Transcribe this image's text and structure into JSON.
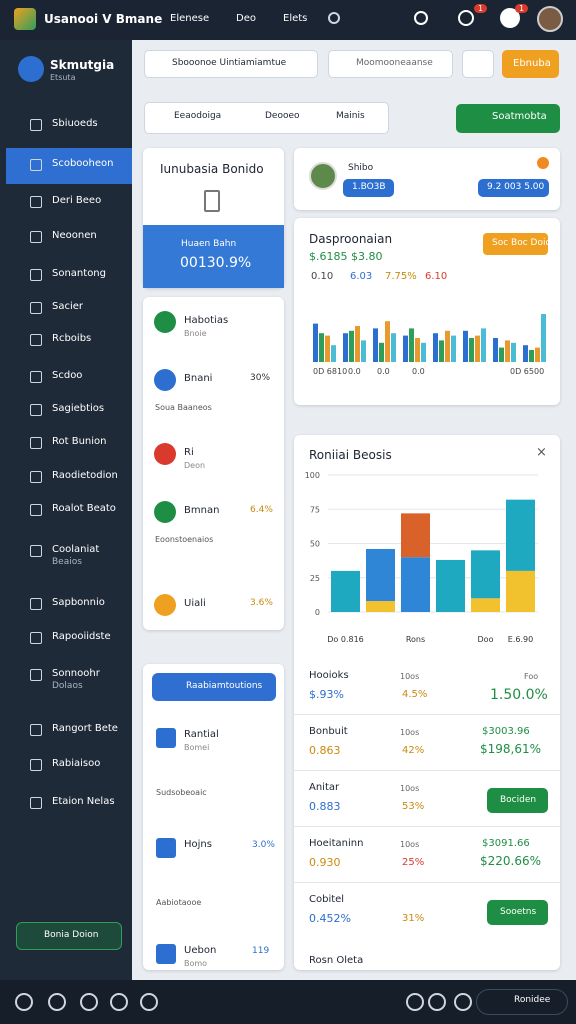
{
  "topbar": {
    "logo": "Usanooi V Bmane",
    "tabs": [
      "Elenese",
      "Deo",
      "Elets"
    ],
    "badges": [
      1,
      1
    ]
  },
  "sidebar": {
    "brand": "Skmutgia",
    "brand_sub": "Etsuta",
    "active": 1,
    "menu": [
      {
        "label": "Sbiuoeds"
      },
      {
        "label": "Scobooheon"
      },
      {
        "label": "Deri Beeo"
      },
      {
        "label": "Neoonen"
      },
      {
        "label": "Sonantong"
      },
      {
        "label": "Sacier"
      },
      {
        "label": "Rcboibs"
      },
      {
        "label": "Scdoo"
      },
      {
        "label": "Sagiebtios"
      },
      {
        "label": "Rot Bunion"
      },
      {
        "label": "Raodietodion"
      },
      {
        "label": "Roalot Beato"
      },
      {
        "label": "Coolaniat",
        "sub": "Beaios"
      },
      {
        "label": "Sapbonnio"
      },
      {
        "label": "Rapooiidste"
      },
      {
        "label": "Sonnoohr",
        "sub": "Dolaos"
      },
      {
        "label": "Rangort Bete"
      },
      {
        "label": "Rabiaisoo"
      },
      {
        "label": "Etaion Nelas"
      }
    ],
    "footer_button": "Bonia Doion"
  },
  "toolbar": {
    "select": "Sbooonoe Uintiamiamtue",
    "search": "Moomooneaanse",
    "button": "Ebnuba",
    "segments": [
      "Eeaodoiga",
      "Deooeo",
      "Mainis"
    ],
    "action": "Soatmobta"
  },
  "hero": {
    "title": "Iunubasia Bonido",
    "box_label": "Huaen Bahn",
    "box_value": "00130.9%"
  },
  "list1": [
    {
      "name": "Habotias",
      "sub": "Bnoie"
    },
    {
      "name": "Bnani",
      "value": "30%",
      "note": "Soua Baaneos"
    },
    {
      "name": "Ri",
      "sub": "Deon"
    },
    {
      "name": "Bmnan",
      "value": "6.4%",
      "note": "Eoonstoenaios"
    },
    {
      "name": "Uiali",
      "value": "3.6%"
    }
  ],
  "list2": {
    "button": "Raabiamtoutions",
    "items": [
      {
        "name": "Rantial",
        "sub": "Bomei",
        "note": "Sudsobeoaic"
      },
      {
        "name": "Hojns",
        "value": "3.0%",
        "note": "Aabiotaooe"
      },
      {
        "name": "Uebon",
        "sub": "Bomo",
        "value": "119"
      }
    ]
  },
  "profile": {
    "name": "Shibo",
    "pill1": "1.BO3B",
    "pill2": "9.2 003 5.00"
  },
  "overview": {
    "title": "Dasproonaian",
    "button": "Soc Boc Doio",
    "headline": "$.6185 $3.80",
    "stats": [
      "0.10",
      "6.03",
      "7.75%",
      "6.10"
    ],
    "axis": [
      "0D 6810",
      "0.0",
      "0.0",
      "0.0",
      "0D 6500"
    ],
    "chart": {
      "type": "bar",
      "ylim": [
        0,
        100
      ],
      "series": [
        {
          "color": "#2d6fd0",
          "values": [
            80,
            60,
            70,
            55,
            60,
            65,
            50,
            35
          ]
        },
        {
          "color": "#2e9e5b",
          "values": [
            60,
            65,
            40,
            70,
            45,
            50,
            30,
            25
          ]
        },
        {
          "color": "#e89a2c",
          "values": [
            55,
            75,
            85,
            50,
            65,
            55,
            45,
            30
          ]
        },
        {
          "color": "#4bbcd6",
          "values": [
            35,
            45,
            60,
            40,
            55,
            70,
            40,
            100
          ]
        }
      ]
    }
  },
  "report": {
    "title": "Roniiai Beosis",
    "chart": {
      "type": "bar",
      "stacked": true,
      "ylim": [
        0,
        100
      ],
      "yticks": [
        0,
        25,
        50,
        75,
        100
      ],
      "categories": [
        "Do 0.816",
        null,
        "Rons",
        null,
        "Doo",
        "E.6.90"
      ],
      "series": [
        {
          "color": "#f2c12e",
          "values": [
            0,
            8,
            0,
            0,
            10,
            30
          ]
        },
        {
          "color": "#2f86d6",
          "values": [
            0,
            38,
            40,
            0,
            0,
            0
          ]
        },
        {
          "color": "#d9622b",
          "values": [
            0,
            0,
            32,
            0,
            0,
            0
          ]
        },
        {
          "color": "#1fa9c0",
          "values": [
            30,
            0,
            0,
            38,
            35,
            52
          ]
        }
      ]
    },
    "rows": [
      {
        "name": "Hooioks",
        "amount": "$.93%",
        "label": "10os",
        "pct": "4.5%",
        "right_label": "Foo",
        "right": "1.50.0%"
      },
      {
        "name": "Bonbuit",
        "amount": "0.863",
        "label": "10os",
        "pct": "42%",
        "right": "$3003.96",
        "right2": "$198,61%"
      },
      {
        "name": "Anitar",
        "amount": "0.883",
        "label": "10os",
        "pct": "53%",
        "button": "Bociden"
      },
      {
        "name": "Hoeitaninn",
        "amount": "0.930",
        "label": "10os",
        "pct": "25%",
        "right": "$3091.66",
        "right2": "$220.66%"
      },
      {
        "name": "Cobitel",
        "amount": "0.452%",
        "pct": "31%",
        "button": "Sooetns"
      }
    ],
    "footer": "Rosn Oleta"
  },
  "bottombar": {
    "button": "Ronidee"
  }
}
